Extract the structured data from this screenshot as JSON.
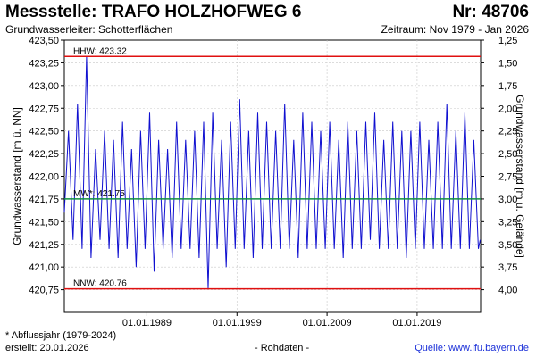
{
  "header": {
    "title": "Messstelle: TRAFO HOLZHOFWEG 6",
    "number": "Nr: 48706",
    "aquifer": "Grundwasserleiter:   Schotterflächen",
    "period": "Zeitraum: Nov 1979 - Jan 2026"
  },
  "footer": {
    "note": "* Abflussjahr (1979-2024)",
    "created": "erstellt:  20.01.2026",
    "data_type": "- Rohdaten -",
    "source": "Quelle: www.lfu.bayern.de"
  },
  "colors": {
    "series": "#1010d0",
    "extreme_lines": "#e01010",
    "mean_line": "#109040",
    "grid": "#c8c8c8"
  },
  "chart_data": {
    "type": "line",
    "title": "Messstelle: TRAFO HOLZHOFWEG 6",
    "ylabel": "Grundwasserstand [m ü. NN]",
    "ylabel_right": "Grundwasserstand [m u. Gelände]",
    "ylim": [
      420.5,
      423.5
    ],
    "ylim_right": [
      4.25,
      1.25
    ],
    "ticks_left": [
      "423,50",
      "423,25",
      "423,00",
      "422,75",
      "422,50",
      "422,25",
      "422,00",
      "421,75",
      "421,50",
      "421,25",
      "421,00",
      "420,75"
    ],
    "ticks_right": [
      "1,25",
      "1,50",
      "1,75",
      "2,00",
      "2,25",
      "2,50",
      "2,75",
      "3,00",
      "3,25",
      "3,50",
      "3,75",
      "4,00"
    ],
    "xlim": [
      1979.83,
      2026.05
    ],
    "x_ticks": [
      {
        "x": 1989.0,
        "label": "01.01.1989"
      },
      {
        "x": 1999.0,
        "label": "01.01.1999"
      },
      {
        "x": 2009.0,
        "label": "01.01.2009"
      },
      {
        "x": 2019.0,
        "label": "01.01.2019"
      }
    ],
    "grid": true,
    "reference_lines": [
      {
        "label": "HHW: 423.32",
        "y": 423.32,
        "color": "#e01010"
      },
      {
        "label": "MW*: 421.75",
        "y": 421.75,
        "color": "#109040"
      },
      {
        "label": "NNW: 420.76",
        "y": 420.76,
        "color": "#e01010"
      }
    ],
    "series": [
      {
        "x": [
          1979.83,
          1980.3,
          1980.8,
          1981.3,
          1981.8,
          1982.3,
          1982.8,
          1983.3,
          1983.8,
          1984.3,
          1984.8,
          1985.3,
          1985.8,
          1986.3,
          1986.8,
          1987.3,
          1987.8,
          1988.3,
          1988.8,
          1989.3,
          1989.8,
          1990.3,
          1990.8,
          1991.3,
          1991.8,
          1992.3,
          1992.8,
          1993.3,
          1993.8,
          1994.3,
          1994.8,
          1995.3,
          1995.8,
          1996.3,
          1996.8,
          1997.3,
          1997.8,
          1998.3,
          1998.8,
          1999.3,
          1999.8,
          2000.3,
          2000.8,
          2001.3,
          2001.8,
          2002.3,
          2002.8,
          2003.3,
          2003.8,
          2004.3,
          2004.8,
          2005.3,
          2005.8,
          2006.3,
          2006.8,
          2007.3,
          2007.8,
          2008.3,
          2008.8,
          2009.3,
          2009.8,
          2010.3,
          2010.8,
          2011.3,
          2011.8,
          2012.3,
          2012.8,
          2013.3,
          2013.8,
          2014.3,
          2014.8,
          2015.3,
          2015.8,
          2016.3,
          2016.8,
          2017.3,
          2017.8,
          2018.3,
          2018.8,
          2019.3,
          2019.8,
          2020.3,
          2020.8,
          2021.3,
          2021.8,
          2022.3,
          2022.8,
          2023.3,
          2023.8,
          2024.3,
          2024.8,
          2025.3,
          2025.8,
          2026.0
        ],
        "y": [
          421.6,
          422.5,
          421.3,
          422.8,
          421.2,
          423.32,
          421.1,
          422.3,
          421.3,
          422.5,
          421.2,
          422.4,
          421.1,
          422.6,
          421.2,
          422.3,
          421.0,
          422.5,
          421.2,
          422.7,
          420.95,
          422.4,
          421.2,
          422.3,
          421.1,
          422.6,
          421.2,
          422.4,
          421.2,
          422.5,
          421.1,
          422.6,
          420.76,
          422.7,
          421.2,
          422.4,
          421.0,
          422.6,
          421.2,
          422.85,
          421.2,
          422.5,
          421.1,
          422.7,
          421.2,
          422.6,
          421.2,
          422.5,
          421.2,
          422.8,
          421.2,
          422.4,
          421.1,
          422.7,
          421.2,
          422.6,
          421.2,
          422.5,
          421.2,
          422.6,
          421.2,
          422.4,
          421.1,
          422.6,
          421.2,
          422.5,
          421.2,
          422.6,
          421.3,
          422.7,
          421.2,
          422.4,
          421.2,
          422.6,
          421.2,
          422.5,
          421.1,
          422.5,
          421.2,
          422.6,
          421.2,
          422.4,
          421.2,
          422.6,
          421.2,
          422.8,
          421.2,
          422.5,
          421.2,
          422.7,
          421.2,
          422.4,
          421.2,
          421.3
        ]
      }
    ]
  }
}
